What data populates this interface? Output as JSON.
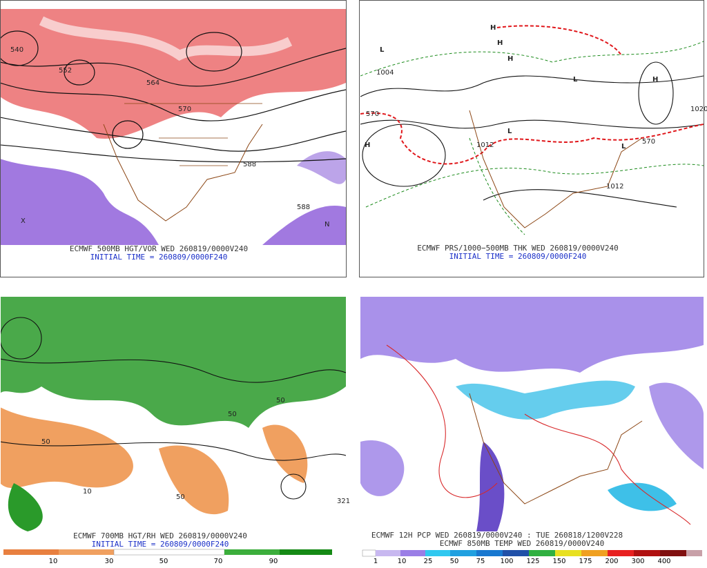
{
  "panels": [
    {
      "caption": "ECMWF 500MB HGT/VOR WED 260819/0000V240",
      "initial_time": "INITIAL TIME = 260809/0000F240",
      "map_labels": [
        "540",
        "552",
        "564",
        "570",
        "588",
        "588",
        "N",
        "X"
      ]
    },
    {
      "caption": "ECMWF PRS/1000−500MB THK WED 260819/0000V240",
      "initial_time": "INITIAL TIME = 260809/0000F240",
      "map_labels": [
        "H",
        "H",
        "H",
        "H",
        "H",
        "L",
        "L",
        "L",
        "L",
        "1012",
        "1012",
        "1020",
        "570",
        "570",
        "1004"
      ]
    },
    {
      "caption": "ECMWF 700MB HGT/RH WED 260819/0000V240",
      "initial_time": "INITIAL TIME = 260809/0000F240",
      "map_labels": [
        "50",
        "50",
        "50",
        "50",
        "10",
        "321"
      ],
      "colorbar": [
        10,
        30,
        50,
        70,
        90
      ]
    },
    {
      "caption": "ECMWF 12H PCP WED 260819/0000V240 : TUE 260818/1200V228",
      "caption2": "ECMWF 850MB TEMP WED 260819/0000V240",
      "colorbar": [
        1,
        10,
        25,
        50,
        75,
        100,
        125,
        150,
        175,
        200,
        300,
        400
      ]
    }
  ]
}
